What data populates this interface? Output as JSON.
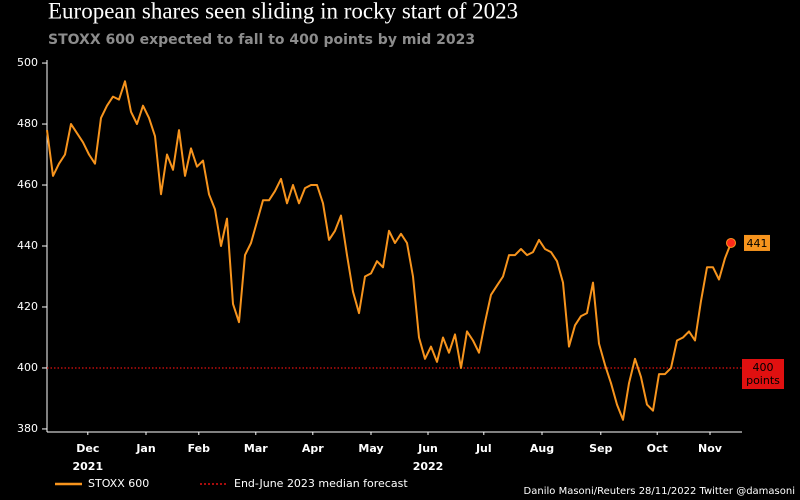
{
  "chart_data": {
    "type": "line",
    "title": "European shares seen sliding in rocky start of 2023",
    "subtitle": "STOXX 600 expected to fall to 400 points by mid 2023",
    "source": "Danilo Masoni/Reuters 28/11/2022 Twitter @damasoni",
    "series": [
      {
        "name": "STOXX 600",
        "color": "#f7941d",
        "values": [
          478,
          463,
          467,
          470,
          480,
          477,
          474,
          470,
          467,
          482,
          486,
          489,
          488,
          494,
          484,
          480,
          486,
          482,
          476,
          457,
          470,
          465,
          478,
          463,
          472,
          466,
          468,
          457,
          452,
          440,
          449,
          421,
          415,
          437,
          441,
          448,
          455,
          455,
          458,
          462,
          454,
          460,
          454,
          459,
          460,
          460,
          454,
          442,
          445,
          450,
          437,
          425,
          418,
          430,
          431,
          435,
          433,
          445,
          441,
          444,
          441,
          430,
          410,
          403,
          407,
          402,
          410,
          405,
          411,
          400,
          412,
          409,
          405,
          415,
          424,
          427,
          430,
          437,
          437,
          439,
          437,
          438,
          442,
          439,
          438,
          435,
          428,
          407,
          414,
          417,
          418,
          428,
          408,
          401,
          395,
          388,
          383,
          395,
          403,
          397,
          388,
          386,
          398,
          398,
          400,
          409,
          410,
          412,
          409,
          422,
          433,
          433,
          429,
          436,
          441
        ]
      }
    ],
    "forecast": {
      "name": "End-June 2023 median forecast",
      "value": 400,
      "label": "400 points",
      "color": "#e01010"
    },
    "xlim": [
      0,
      114
    ],
    "xticks": [
      {
        "value": 6.8,
        "label": "Dec"
      },
      {
        "value": 16.5,
        "label": "Jan"
      },
      {
        "value": 25.3,
        "label": "Feb"
      },
      {
        "value": 34.8,
        "label": "Mar"
      },
      {
        "value": 44.3,
        "label": "Apr"
      },
      {
        "value": 54,
        "label": "May"
      },
      {
        "value": 63.5,
        "label": "Jun"
      },
      {
        "value": 72.8,
        "label": "Jul"
      },
      {
        "value": 82.5,
        "label": "Aug"
      },
      {
        "value": 92.3,
        "label": "Sep"
      },
      {
        "value": 101.7,
        "label": "Oct"
      },
      {
        "value": 110.5,
        "label": "Nov"
      }
    ],
    "x_year_labels": [
      {
        "value": 6.8,
        "label": "2021"
      },
      {
        "value": 63.5,
        "label": "2022"
      }
    ],
    "ylim": [
      379,
      501
    ],
    "yticks": [
      380,
      400,
      420,
      440,
      460,
      480,
      500
    ],
    "grid": false
  }
}
